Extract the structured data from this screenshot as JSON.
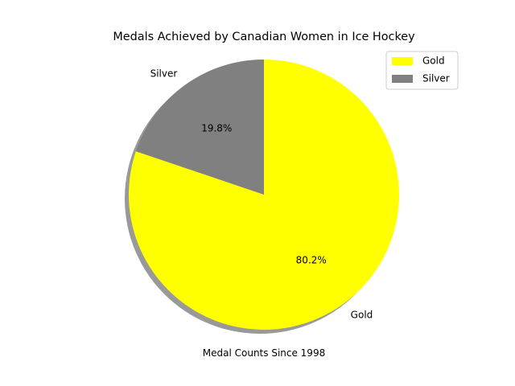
{
  "chart_data": {
    "type": "pie",
    "title": "Medals Achieved by Canadian Women in Ice Hockey",
    "xlabel": "Medal Counts Since 1998",
    "ylabel": "",
    "labels": [
      "Gold",
      "Silver"
    ],
    "values": [
      80.2,
      19.8
    ],
    "percent_labels": [
      "80.2%",
      "19.8%"
    ],
    "colors": [
      "#ffff00",
      "#808080"
    ],
    "shadow": true,
    "start_angle_deg": 90,
    "legend": {
      "position": "top-right",
      "entries": [
        "Gold",
        "Silver"
      ]
    }
  }
}
